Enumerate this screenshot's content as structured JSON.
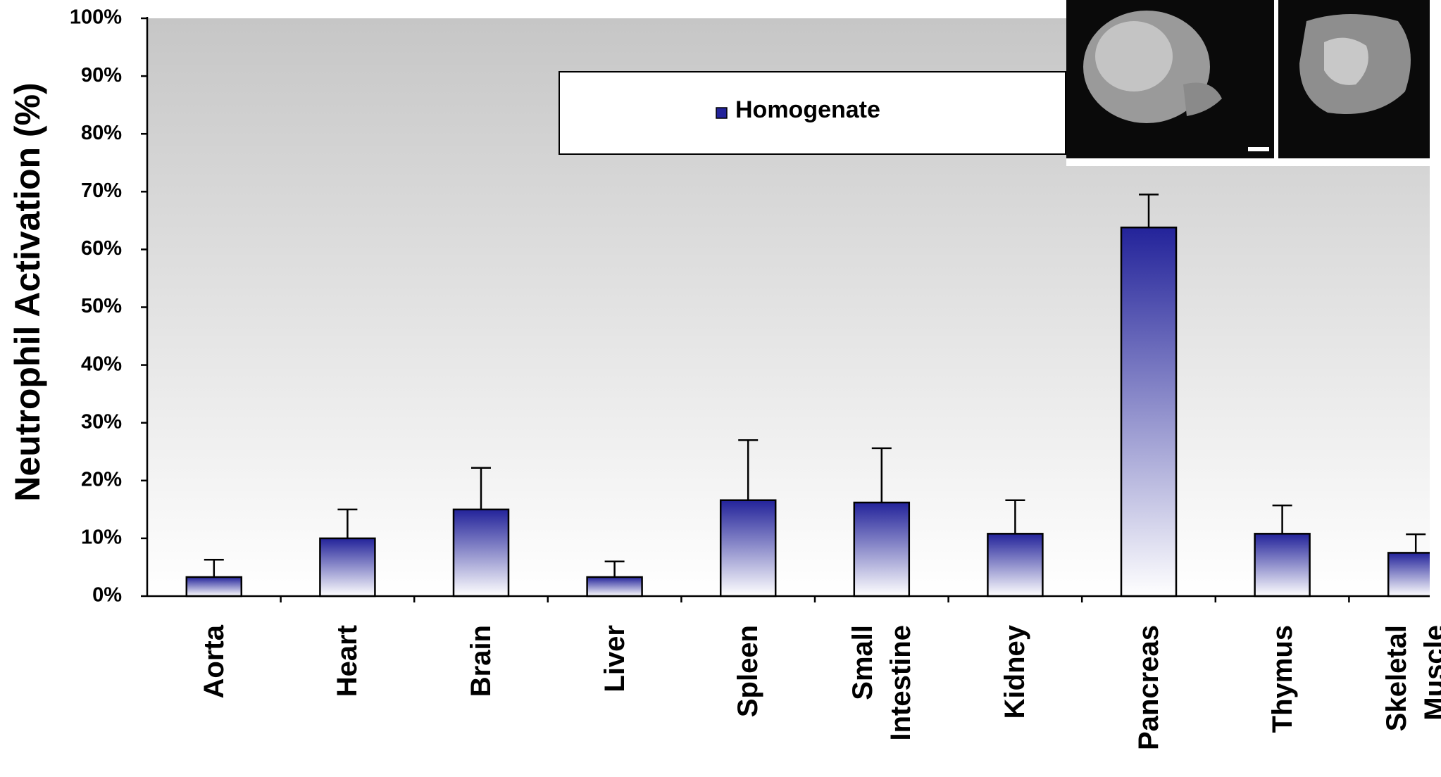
{
  "chart_data": {
    "type": "bar",
    "y_label": "Neutrophil Activation (%)",
    "categories": [
      "Aorta",
      "Heart",
      "Brain",
      "Liver",
      "Spleen",
      "Small Intestine",
      "Kidney",
      "Pancreas",
      "Thymus",
      "Skeletal Muscle"
    ],
    "series": [
      {
        "name": "Homogenate",
        "color": "#23239a",
        "values": [
          3.3,
          10,
          15,
          3.3,
          16.6,
          16.2,
          10.8,
          63.8,
          10.8,
          7.5
        ],
        "errors": [
          3,
          5,
          7.2,
          2.7,
          10.4,
          9.4,
          5.8,
          5.7,
          4.9,
          3.2
        ]
      }
    ],
    "ylim": [
      0,
      100
    ],
    "yticks": [
      {
        "value": 0,
        "label": "0%"
      },
      {
        "value": 10,
        "label": "10%"
      },
      {
        "value": 20,
        "label": "20%"
      },
      {
        "value": 30,
        "label": "30%"
      },
      {
        "value": 40,
        "label": "40%"
      },
      {
        "value": 50,
        "label": "50%"
      },
      {
        "value": 60,
        "label": "60%"
      },
      {
        "value": 70,
        "label": "70%"
      },
      {
        "value": 80,
        "label": "80%"
      },
      {
        "value": 90,
        "label": "90%"
      },
      {
        "value": 100,
        "label": "100%"
      }
    ]
  }
}
